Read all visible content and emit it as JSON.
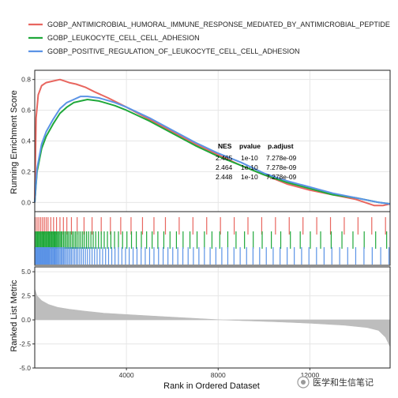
{
  "chart_data": {
    "type": "line",
    "title": "",
    "colors": {
      "series1": "#E8665F",
      "series2": "#1FA83A",
      "series3": "#5B93E6",
      "metric": "#BDBDBD",
      "grid": "#E6E6E6",
      "panel_border": "#222222"
    },
    "legend": {
      "placement": "top",
      "entries": [
        "GOBP_ANTIMICROBIAL_HUMORAL_IMMUNE_RESPONSE_MEDIATED_BY_ANTIMICROBIAL_PEPTIDE",
        "GOBP_LEUKOCYTE_CELL_CELL_ADHESION",
        "GOBP_POSITIVE_REGULATION_OF_LEUKOCYTE_CELL_CELL_ADHESION"
      ]
    },
    "x": {
      "label": "Rank in Ordered Dataset",
      "range": [
        0,
        15500
      ],
      "ticks": [
        4000,
        8000,
        12000
      ],
      "tick_labels": [
        "4000",
        "8000",
        "12000"
      ]
    },
    "running_score": {
      "ylabel": "Running Enrichment Score",
      "ylim": [
        -0.06,
        0.86
      ],
      "ticks": [
        0.0,
        0.2,
        0.4,
        0.6,
        0.8
      ],
      "tick_labels": [
        "0.0",
        "0.2",
        "0.4",
        "0.6",
        "0.8"
      ],
      "series": [
        {
          "name": "GOBP_ANTIMICROBIAL_HUMORAL_IMMUNE_RESPONSE_MEDIATED_BY_ANTIMICROBIAL_PEPTIDE",
          "x": [
            0,
            60,
            150,
            300,
            500,
            800,
            1100,
            1300,
            1500,
            1800,
            2200,
            2600,
            3200,
            4000,
            5000,
            6000,
            7000,
            8000,
            9000,
            10000,
            11000,
            12000,
            13000,
            14000,
            14800,
            15200,
            15500
          ],
          "y": [
            0.0,
            0.55,
            0.7,
            0.76,
            0.78,
            0.79,
            0.8,
            0.79,
            0.78,
            0.77,
            0.75,
            0.72,
            0.68,
            0.62,
            0.54,
            0.46,
            0.38,
            0.31,
            0.24,
            0.18,
            0.12,
            0.08,
            0.05,
            0.02,
            -0.02,
            -0.02,
            -0.01
          ]
        },
        {
          "name": "GOBP_LEUKOCYTE_CELL_CELL_ADHESION",
          "x": [
            0,
            100,
            300,
            500,
            800,
            1100,
            1400,
            1700,
            2000,
            2300,
            2800,
            3500,
            4000,
            5000,
            6000,
            7000,
            8000,
            9000,
            10000,
            11000,
            12000,
            13000,
            14000,
            15000,
            15500
          ],
          "y": [
            0.0,
            0.2,
            0.35,
            0.43,
            0.51,
            0.58,
            0.62,
            0.65,
            0.66,
            0.67,
            0.66,
            0.63,
            0.6,
            0.53,
            0.45,
            0.37,
            0.3,
            0.24,
            0.18,
            0.13,
            0.09,
            0.05,
            0.03,
            0.0,
            -0.01
          ]
        },
        {
          "name": "GOBP_POSITIVE_REGULATION_OF_LEUKOCYTE_CELL_CELL_ADHESION",
          "x": [
            0,
            100,
            300,
            500,
            800,
            1100,
            1400,
            1700,
            2000,
            2300,
            2800,
            3500,
            4000,
            5000,
            6000,
            7000,
            8000,
            9000,
            10000,
            11000,
            12000,
            13000,
            14000,
            15000,
            15500
          ],
          "y": [
            0.0,
            0.22,
            0.38,
            0.46,
            0.54,
            0.61,
            0.65,
            0.67,
            0.69,
            0.69,
            0.68,
            0.65,
            0.62,
            0.55,
            0.47,
            0.39,
            0.32,
            0.26,
            0.19,
            0.14,
            0.1,
            0.06,
            0.03,
            0.0,
            -0.01
          ]
        }
      ]
    },
    "stats_table": {
      "headers": [
        "NES",
        "pvalue",
        "p.adjust"
      ],
      "rows": [
        [
          "2.465",
          "1e-10",
          "7.278e-09"
        ],
        [
          "2.464",
          "1e-10",
          "7.278e-09"
        ],
        [
          "2.448",
          "1e-10",
          "7.278e-09"
        ]
      ]
    },
    "hit_ranks": [
      [
        20,
        100,
        180,
        260,
        340,
        420,
        500,
        580,
        700,
        820,
        950,
        1100,
        1250,
        1400,
        1600,
        1850,
        2150,
        2500,
        2900,
        3300,
        3750,
        4200,
        4700,
        5200,
        5700,
        6300,
        6900,
        7500,
        8100,
        8700,
        9300,
        9900,
        10500,
        11100,
        11700,
        12300,
        12900,
        13500,
        14100,
        14700,
        15300
      ],
      [
        0,
        40,
        80,
        120,
        160,
        200,
        240,
        280,
        320,
        360,
        400,
        440,
        480,
        520,
        560,
        600,
        640,
        680,
        720,
        760,
        800,
        840,
        880,
        920,
        960,
        1000,
        1050,
        1100,
        1150,
        1200,
        1260,
        1320,
        1380,
        1440,
        1500,
        1570,
        1640,
        1710,
        1780,
        1850,
        1930,
        2010,
        2090,
        2170,
        2260,
        2350,
        2450,
        2550,
        2660,
        2780,
        2900,
        3030,
        3170,
        3320,
        3480,
        3650,
        3830,
        4020,
        4220,
        4430,
        4650,
        4880,
        5120,
        5370,
        5630,
        5900,
        6180,
        6470,
        6770,
        7080,
        7400,
        7730,
        8070,
        8420,
        8780,
        9150,
        9530,
        9920,
        10320,
        10730,
        11150,
        11580,
        12020,
        12470,
        12930,
        13400,
        13880,
        14370,
        14870,
        15350
      ],
      [
        0,
        30,
        60,
        90,
        120,
        150,
        180,
        210,
        240,
        270,
        300,
        330,
        360,
        390,
        420,
        450,
        480,
        510,
        540,
        570,
        600,
        640,
        680,
        720,
        760,
        800,
        840,
        880,
        920,
        960,
        1000,
        1050,
        1100,
        1150,
        1200,
        1250,
        1300,
        1360,
        1420,
        1480,
        1540,
        1600,
        1670,
        1740,
        1810,
        1880,
        1960,
        2040,
        2120,
        2210,
        2300,
        2400,
        2500,
        2610,
        2720,
        2840,
        2960,
        3090,
        3220,
        3360,
        3500,
        3650,
        3800,
        3960,
        4120,
        4290,
        4460,
        4640,
        4820,
        5010,
        5200,
        5400,
        5600,
        5810,
        6020,
        6240,
        6460,
        6690,
        6920,
        7160,
        7400,
        7650,
        7900,
        8160,
        8420,
        8690,
        8960,
        9240,
        9520,
        9810,
        10100,
        10400,
        10700,
        11010,
        11320,
        11640,
        11960,
        12290,
        12620,
        12960,
        13300,
        13650,
        14000,
        14360,
        14720,
        15090,
        15450
      ]
    ],
    "ranked_metric": {
      "ylabel": "Ranked List Metric",
      "ylim": [
        -5.0,
        5.5
      ],
      "ticks": [
        -5.0,
        -2.5,
        0.0,
        2.5,
        5.0
      ],
      "tick_labels": [
        "-5.0",
        "-2.5",
        "0.0",
        "2.5",
        "5.0"
      ],
      "x": [
        0,
        100,
        300,
        600,
        1000,
        1500,
        2200,
        3000,
        4000,
        5500,
        7000,
        8000,
        9000,
        10500,
        12000,
        13500,
        14500,
        15000,
        15300,
        15500
      ],
      "y": [
        3.2,
        2.5,
        2.0,
        1.6,
        1.3,
        1.1,
        0.9,
        0.7,
        0.55,
        0.35,
        0.15,
        0.02,
        -0.08,
        -0.2,
        -0.35,
        -0.55,
        -0.8,
        -1.1,
        -1.8,
        -2.8
      ]
    }
  },
  "watermark": {
    "text": "医学和生信笔记"
  }
}
